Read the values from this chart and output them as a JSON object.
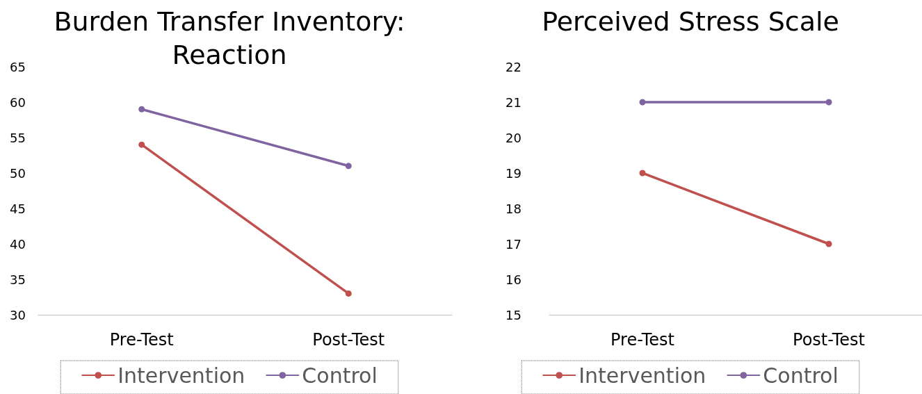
{
  "chart_data": [
    {
      "type": "line",
      "title": "Burden Transfer Inventory:\nReaction",
      "categories": [
        "Pre-Test",
        "Post-Test"
      ],
      "series": [
        {
          "name": "Intervention",
          "color": "#c0504d",
          "values": [
            54,
            33
          ]
        },
        {
          "name": "Control",
          "color": "#8064a2",
          "values": [
            59,
            51
          ]
        }
      ],
      "ylim": [
        30,
        65
      ],
      "yticks": [
        30,
        35,
        40,
        45,
        50,
        55,
        60,
        65
      ],
      "grid": false,
      "legend": "bottom",
      "marker": "circle",
      "line_style": "solid"
    },
    {
      "type": "line",
      "title": "Perceived Stress Scale",
      "categories": [
        "Pre-Test",
        "Post-Test"
      ],
      "series": [
        {
          "name": "Intervention",
          "color": "#c0504d",
          "values": [
            19,
            17
          ]
        },
        {
          "name": "Control",
          "color": "#8064a2",
          "values": [
            21,
            21
          ]
        }
      ],
      "ylim": [
        15,
        22
      ],
      "yticks": [
        15,
        16,
        17,
        18,
        19,
        20,
        21,
        22
      ],
      "grid": false,
      "legend": "bottom",
      "marker": "circle",
      "line_style": "solid"
    }
  ]
}
